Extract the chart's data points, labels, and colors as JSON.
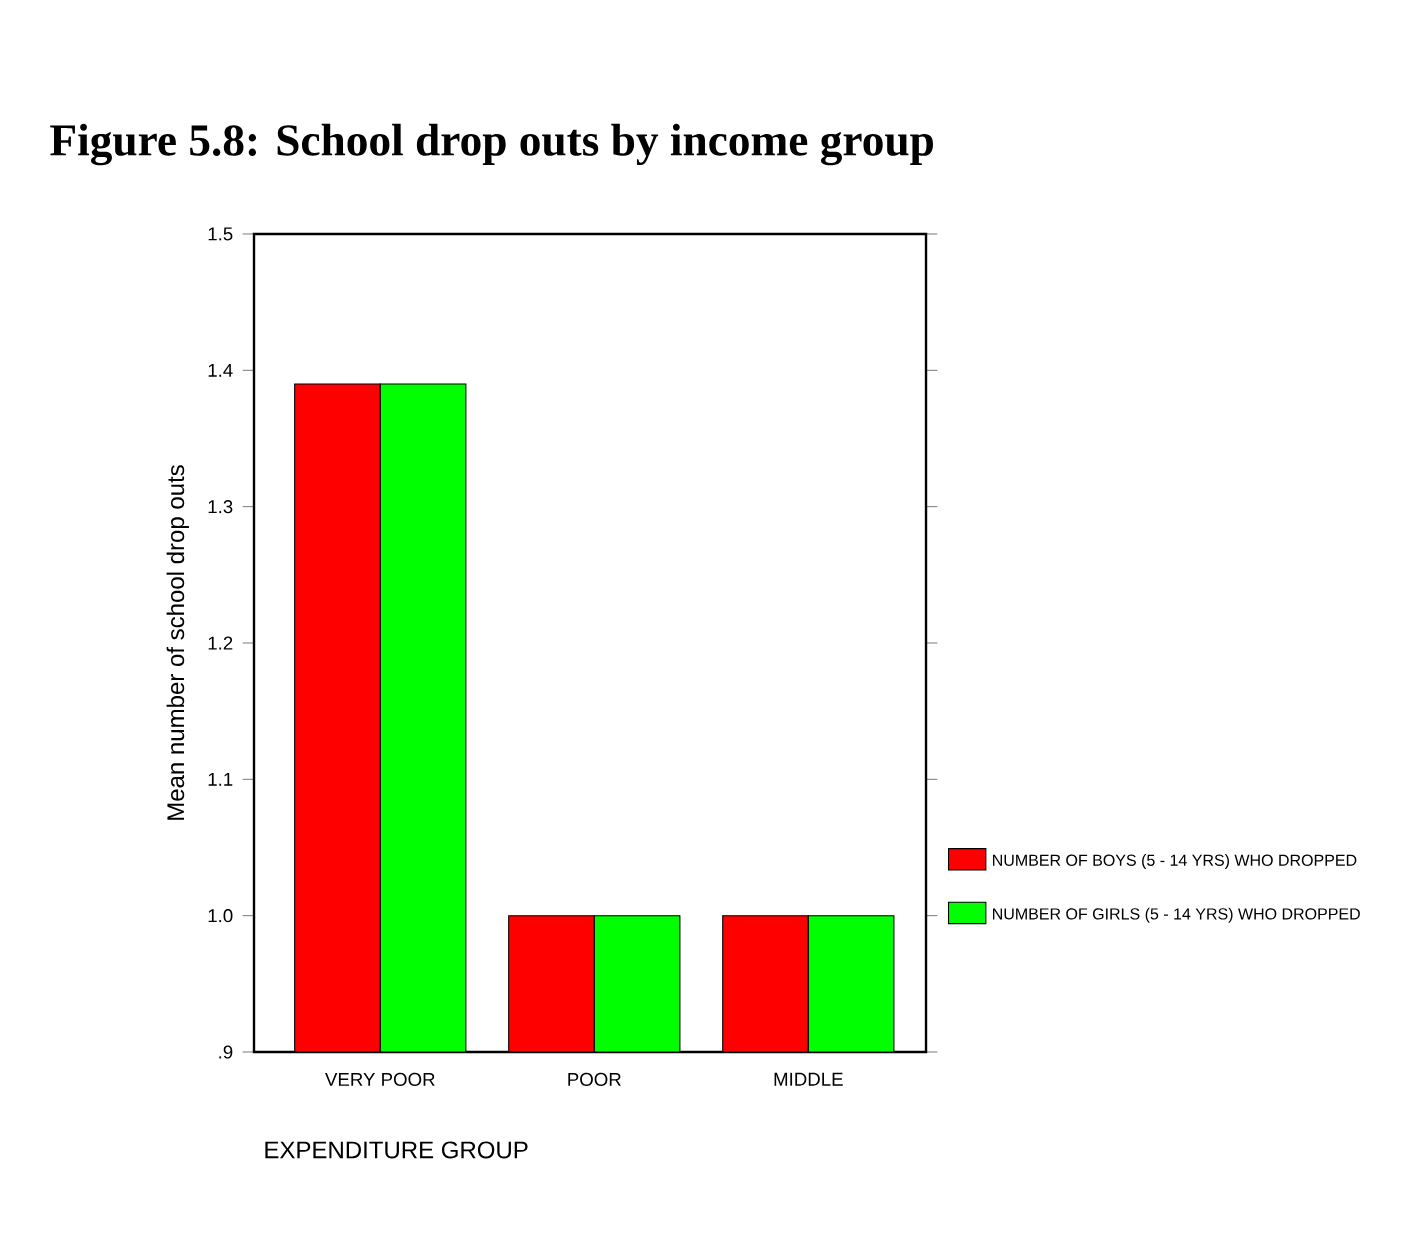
{
  "chart_data": {
    "type": "bar",
    "title": "Figure 5.8: School drop outs by income group",
    "xlabel": "EXPENDITURE GROUP",
    "ylabel": "Mean number of school drop outs",
    "categories": [
      "VERY POOR",
      "POOR",
      "MIDDLE"
    ],
    "series": [
      {
        "name": "NUMBER OF BOYS (5 - 14 YRS) WHO DROPPED",
        "color": "#ff0000",
        "values": [
          1.39,
          1.0,
          1.0
        ]
      },
      {
        "name": "NUMBER OF GIRLS (5 - 14 YRS) WHO DROPPED",
        "color": "#00ff00",
        "values": [
          1.39,
          1.0,
          1.0
        ]
      }
    ],
    "ylim": [
      0.9,
      1.5
    ],
    "yticks": [
      {
        "value": 0.9,
        "label": ".9"
      },
      {
        "value": 1.0,
        "label": "1.0"
      },
      1.1,
      1.2,
      1.3,
      1.4,
      1.5
    ],
    "grid": false,
    "legend": "right"
  }
}
